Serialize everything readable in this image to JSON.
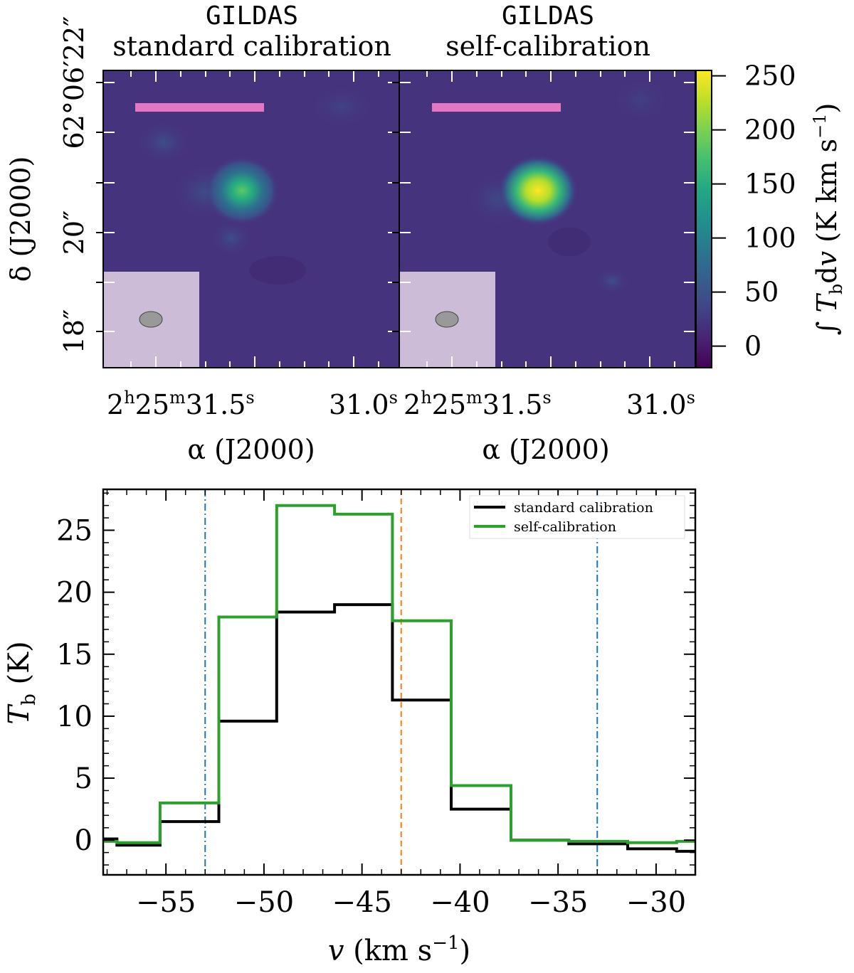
{
  "maps": {
    "panels": [
      {
        "code": "GILDAS",
        "subtitle": "standard calibration",
        "peak_K_km_s": 170,
        "spot_size_rel": 1.0
      },
      {
        "code": "GILDAS",
        "subtitle": "self-calibration",
        "peak_K_km_s": 245,
        "spot_size_rel": 1.05
      }
    ],
    "ylabel": "δ (J2000)",
    "xlabel": "α (J2000)",
    "dec_ticks": [
      {
        "arcsec": 22,
        "label": "62°06′22″"
      },
      {
        "arcsec": 20,
        "label": "20″"
      },
      {
        "arcsec": 18,
        "label": "18″"
      }
    ],
    "ra_ticks": [
      {
        "sec": 31.5,
        "label": "2h25m31.5s",
        "h": "2",
        "m": "25",
        "s": "31.5"
      },
      {
        "sec": 31.0,
        "label": "31.0s",
        "s": "31.0"
      }
    ],
    "colorbar": {
      "label": "∫ Tb dv (K km s−1)",
      "range": [
        -20,
        255
      ],
      "ticks": [
        0,
        50,
        100,
        150,
        200,
        250
      ],
      "tick_labels": [
        "0",
        "50",
        "100",
        "150",
        "200",
        "250"
      ],
      "colormap": "viridis"
    },
    "colors": {
      "scale_bar": "#e377c2",
      "beam": "#999999",
      "inset": "#d9c8e0"
    }
  },
  "chart_data": {
    "type": "line",
    "drawstyle": "steps-mid",
    "title": "",
    "xlabel": "v (km s−1)",
    "ylabel": "Tb (K)",
    "xlim": [
      -58.2,
      -28
    ],
    "ylim": [
      -2.8,
      28.3
    ],
    "x": [
      -58.2,
      -56.8,
      -53.8,
      -50.8,
      -47.9,
      -44.9,
      -42.0,
      -38.9,
      -35.9,
      -33.0,
      -29.9,
      -28.0
    ],
    "series": [
      {
        "name": "standard calibration",
        "color": "#000000",
        "values": [
          0.1,
          -0.4,
          1.5,
          9.6,
          18.4,
          19.0,
          11.3,
          2.5,
          0.0,
          -0.3,
          -0.7,
          -0.9
        ]
      },
      {
        "name": "self-calibration",
        "color": "#2ca02c",
        "values": [
          -0.1,
          -0.2,
          3.0,
          18.0,
          27.0,
          26.3,
          17.7,
          4.4,
          0.0,
          -0.1,
          -0.2,
          -0.1
        ]
      }
    ],
    "vlines": [
      {
        "x": -53.0,
        "color": "#1f77b4",
        "style": "dashdot"
      },
      {
        "x": -33.0,
        "color": "#1f77b4",
        "style": "dashdot"
      },
      {
        "x": -43.0,
        "color": "#ff7f0e",
        "style": "dashed"
      }
    ],
    "xticks": [
      -55,
      -50,
      -45,
      -40,
      -35,
      -30
    ],
    "xtick_labels": [
      "−55",
      "−50",
      "−45",
      "−40",
      "−35",
      "−30"
    ],
    "yticks": [
      0,
      5,
      10,
      15,
      20,
      25
    ],
    "ytick_labels": [
      "0",
      "5",
      "10",
      "15",
      "20",
      "25"
    ],
    "legend": "top-right"
  }
}
